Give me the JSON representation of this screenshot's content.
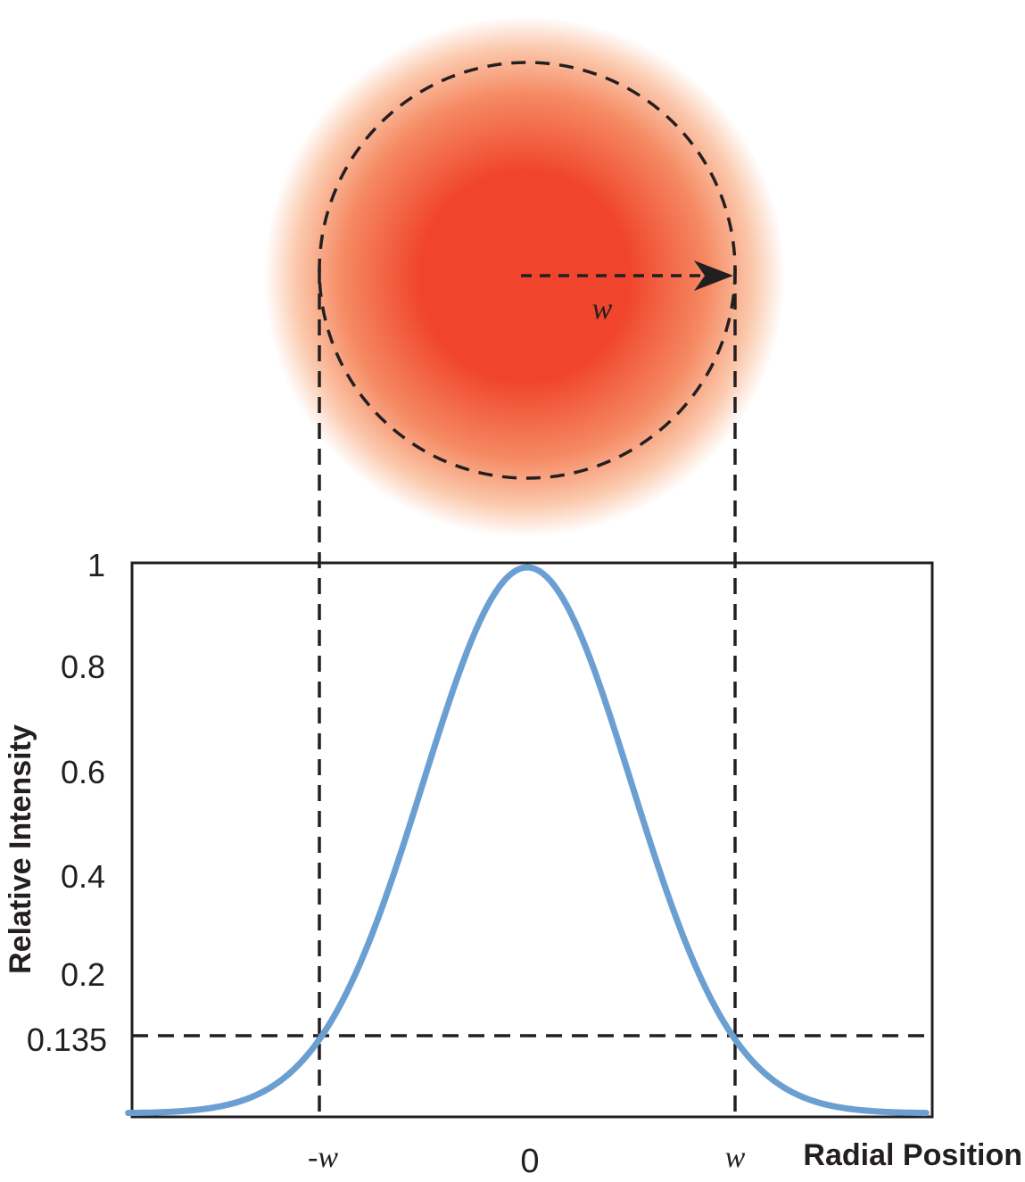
{
  "beam": {
    "radius_label": "w",
    "core_color": "#f0442c",
    "mid_color": "#f58a63",
    "edge_color": "#ffffff"
  },
  "chart_data": {
    "type": "line",
    "xlabel": "Radial Position",
    "ylabel": "Relative Intensity",
    "x_ticks": [
      "-w",
      "0",
      "w"
    ],
    "y_ticks": [
      "1",
      "0.8",
      "0.6",
      "0.4",
      "0.2",
      "0.135"
    ],
    "y_tick_values": [
      1,
      0.8,
      0.6,
      0.4,
      0.2,
      0.135
    ],
    "x_tick_values": [
      -1,
      0,
      1
    ],
    "xlim": [
      -1.92,
      1.92
    ],
    "ylim": [
      0,
      1
    ],
    "series": [
      {
        "function": "exp(-2*x^2)",
        "x": [
          -1.92,
          -1.6,
          -1.4,
          -1.2,
          -1.0,
          -0.8,
          -0.6,
          -0.4,
          -0.2,
          0.0,
          0.2,
          0.4,
          0.6,
          0.8,
          1.0,
          1.2,
          1.4,
          1.6,
          1.92
        ],
        "y": [
          0.0006,
          0.006,
          0.02,
          0.056,
          0.135,
          0.278,
          0.487,
          0.726,
          0.923,
          1.0,
          0.923,
          0.726,
          0.487,
          0.278,
          0.135,
          0.056,
          0.02,
          0.006,
          0.0006
        ],
        "color": "#6b9fd2"
      }
    ],
    "reference_lines": [
      {
        "axis": "y",
        "value": 0.135,
        "style": "dashed"
      },
      {
        "axis": "x",
        "value": -1,
        "style": "dashed"
      },
      {
        "axis": "x",
        "value": 1,
        "style": "dashed"
      }
    ],
    "grid": false
  }
}
